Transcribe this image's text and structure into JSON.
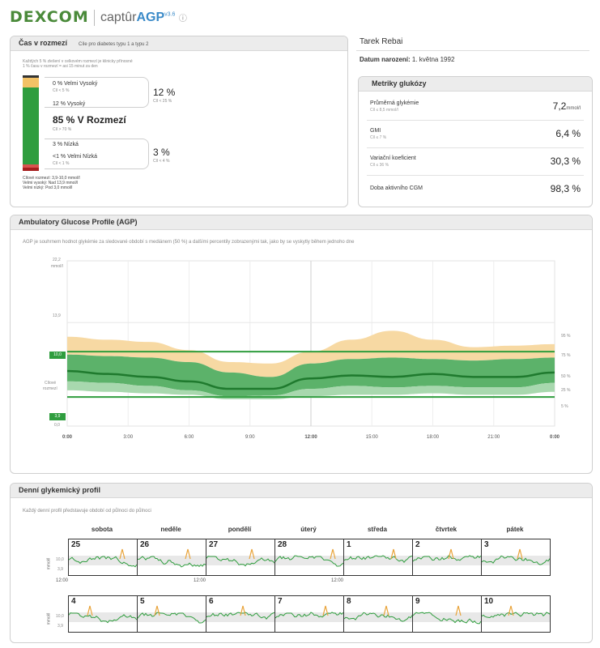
{
  "header": {
    "logo": "DEXCOM",
    "brand_prefix": "captûr",
    "brand_name": "AGP",
    "brand_version": "v3.6"
  },
  "patient": {
    "name": "Tarek Rebai",
    "dob_label": "Datum narození:",
    "dob_value": "1. května 1992"
  },
  "tir": {
    "title": "Čas v rozmezí",
    "subtitle": "Cíle pro diabetes typu 1 a typu 2",
    "note1": "Každých 5 % zlešení v celkovém rozmezí je klinicky přínosné",
    "note2": "1 % času v rozmezí = asi 15 minut za den",
    "very_high": "0 % Velmi Vysoký",
    "very_high_goal": "Cíl < 5 %",
    "high": "12 % Vysoký",
    "above_total": "12 %",
    "above_goal": "Cíl < 25 %",
    "in_range": "85 % V Rozmezí",
    "in_range_goal": "Cíl > 70 %",
    "low": "3 % Nízká",
    "very_low": "<1 % Velmi Nízká",
    "very_low_goal": "Cíl < 1 %",
    "below_total": "3 %",
    "below_goal": "Cíl < 4 %",
    "foot1": "Cílové rozmezí: 3,9-10,0 mmol/l",
    "foot2": "Velmi vysoký: Nad 13,9 mmol/l",
    "foot3": "Velmi nízký: Pod 3,0 mmol/l",
    "levels": {
      "very_high": 0,
      "high": 12,
      "in_range": 85,
      "low": 3,
      "very_low": 1
    }
  },
  "metrics": {
    "title": "Metriky glukózy",
    "rows": [
      {
        "label": "Průměrná glykémie",
        "goal": "Cíl ≤ 8,5 mmol/l",
        "value": "7,2",
        "unit": "mmol/l"
      },
      {
        "label": "GMI",
        "goal": "Cíl ≤ 7 %",
        "value": "6,4 %",
        "unit": ""
      },
      {
        "label": "Variační koeficient",
        "goal": "Cíl ≤ 36 %",
        "value": "30,3 %",
        "unit": ""
      },
      {
        "label": "Doba aktivního CGM",
        "goal": "",
        "value": "98,3 %",
        "unit": ""
      }
    ]
  },
  "agp": {
    "title": "Ambulatory Glucose Profile (AGP)",
    "desc": "AGP je souhrnem hodnot glykémie za sledované období s mediánem (50 %) a dalšími percentily zobrazenými tak, jako by se vyskytly během jednoho dne",
    "y_top": "22,2",
    "y_unit": "mmol/l",
    "y_139": "13,9",
    "y_10": "10,0",
    "y_39": "3,9",
    "y_0": "0,0",
    "target_label_1": "Cílové",
    "target_label_2": "rozmezí",
    "pct_95": "95 %",
    "pct_75": "75 %",
    "pct_50": "50 %",
    "pct_25": "25 %",
    "pct_5": "5 %",
    "x_labels": [
      "0:00",
      "3:00",
      "6:00",
      "9:00",
      "12:00",
      "15:00",
      "18:00",
      "21:00",
      "0:00"
    ]
  },
  "chart_data": {
    "type": "area",
    "xlabel": "",
    "ylabel": "mmol/l",
    "ylim": [
      0,
      22.2
    ],
    "target_range": [
      3.9,
      10.0
    ],
    "x": [
      0,
      2,
      4,
      6,
      8,
      10,
      12,
      14,
      16,
      18,
      20,
      22,
      24
    ],
    "series": [
      {
        "name": "95 %",
        "values": [
          12.0,
          11.6,
          11.3,
          10.2,
          8.6,
          8.4,
          10.0,
          11.6,
          12.8,
          11.6,
          10.6,
          10.8,
          11.0
        ]
      },
      {
        "name": "75 %",
        "values": [
          9.6,
          9.4,
          9.2,
          8.6,
          7.2,
          6.6,
          8.4,
          9.0,
          9.2,
          9.0,
          8.8,
          9.0,
          9.2
        ]
      },
      {
        "name": "50 %",
        "values": [
          7.4,
          7.0,
          6.6,
          6.0,
          5.0,
          5.0,
          6.4,
          6.8,
          6.6,
          7.0,
          6.6,
          6.6,
          7.2
        ]
      },
      {
        "name": "25 %",
        "values": [
          6.0,
          5.8,
          5.4,
          4.8,
          4.0,
          4.1,
          5.0,
          5.4,
          5.2,
          5.4,
          5.2,
          5.2,
          5.8
        ]
      },
      {
        "name": "5 %",
        "values": [
          4.8,
          4.6,
          4.4,
          4.2,
          3.6,
          3.6,
          4.0,
          4.2,
          4.2,
          4.4,
          4.2,
          4.2,
          4.6
        ]
      }
    ]
  },
  "daily": {
    "title": "Denní glykemický profil",
    "desc": "Každý denní profil představuje období od půlnoci do půlnoci",
    "unit": "mmol/l",
    "y_high": "10,0",
    "y_low": "3,9",
    "noon": "12:00",
    "day_names": [
      "sobota",
      "neděle",
      "pondělí",
      "úterý",
      "středa",
      "čtvrtek",
      "pátek"
    ],
    "row1": [
      "25",
      "26",
      "27",
      "28",
      "1",
      "2",
      "3"
    ],
    "row2": [
      "4",
      "5",
      "6",
      "7",
      "8",
      "9",
      "10"
    ]
  },
  "colors": {
    "vh": "#e8a33a",
    "h": "#f3c266",
    "inrange": "#2f9d3e",
    "low": "#d9534f",
    "vlow": "#a61e1e",
    "dark": "#222"
  }
}
